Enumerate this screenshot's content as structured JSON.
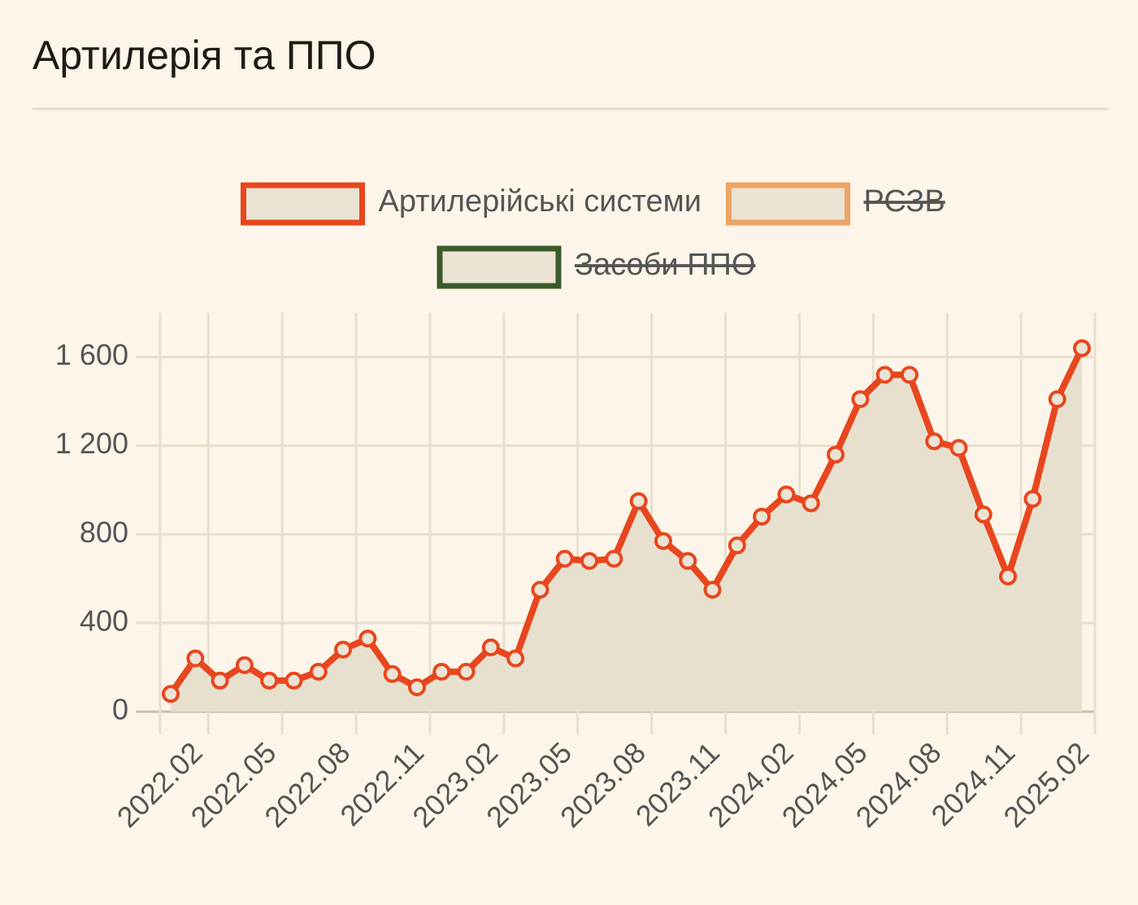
{
  "chart_data": {
    "type": "line",
    "title": "Артилерія та ППО",
    "categories": [
      null,
      "2022.02",
      null,
      null,
      "2022.05",
      null,
      null,
      "2022.08",
      null,
      null,
      "2022.11",
      null,
      null,
      "2023.02",
      null,
      null,
      "2023.05",
      null,
      null,
      "2023.08",
      null,
      null,
      "2023.11",
      null,
      null,
      "2024.02",
      null,
      null,
      "2024.05",
      null,
      null,
      "2024.08",
      null,
      null,
      "2024.11",
      null,
      null,
      "2025.02"
    ],
    "series": [
      {
        "name": "Артилерійські системи",
        "color": "#e8461e",
        "values": [
          80,
          240,
          140,
          210,
          140,
          140,
          180,
          280,
          330,
          170,
          110,
          180,
          180,
          290,
          240,
          550,
          690,
          680,
          690,
          950,
          770,
          680,
          550,
          750,
          880,
          980,
          940,
          1160,
          1410,
          1520,
          1520,
          1220,
          1190,
          890,
          610,
          960,
          1410,
          1640
        ]
      },
      {
        "name": "РСЗВ",
        "color": "#eca466",
        "hidden": true
      },
      {
        "name": "Засоби ППО",
        "color": "#3b5a2a",
        "hidden": true
      }
    ],
    "ylim": [
      0,
      1800
    ],
    "yticks": [
      0,
      {
        "value": 400,
        "label": "400"
      },
      {
        "value": 800,
        "label": "800"
      },
      {
        "value": 1200,
        "label": "1 200"
      },
      {
        "value": 1600,
        "label": "1 600"
      }
    ],
    "grid": true
  }
}
